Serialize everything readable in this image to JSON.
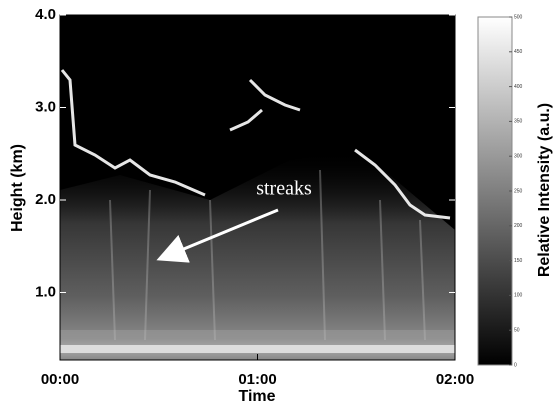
{
  "chart_data": {
    "type": "heatmap",
    "xlabel": "Time",
    "ylabel": "Height (km)",
    "xlim": [
      0,
      120
    ],
    "xticks": [
      {
        "value": 0,
        "label": "00:00"
      },
      {
        "value": 60,
        "label": "01:00"
      },
      {
        "value": 120,
        "label": "02:00"
      }
    ],
    "ylim": [
      0.27,
      4.0
    ],
    "yticks": [
      {
        "value": 1,
        "label": "1.0"
      },
      {
        "value": 2,
        "label": "2.0"
      },
      {
        "value": 3,
        "label": "3.0"
      },
      {
        "value": 4,
        "label": "4.0"
      }
    ],
    "annotation": "streaks",
    "colorbar_label": "Relative Intensity (a.u.)",
    "colorbar_lim": [
      0,
      500
    ],
    "colorbar_ticks": [
      0,
      50,
      100,
      150,
      200,
      250,
      300,
      350,
      400,
      450,
      500
    ]
  }
}
